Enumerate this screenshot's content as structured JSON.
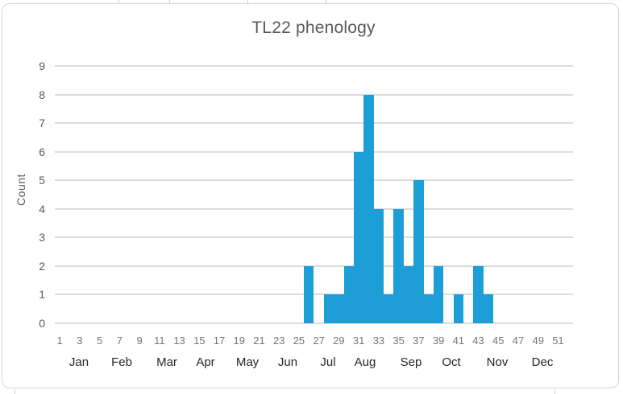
{
  "chart_data": {
    "type": "bar",
    "title": "TL22 phenology",
    "ylabel": "Count",
    "xlabel": "",
    "x_unit": "week-of-year",
    "ylim": [
      0,
      9
    ],
    "y_ticks": [
      "0",
      "1",
      "2",
      "3",
      "4",
      "5",
      "6",
      "7",
      "8",
      "9"
    ],
    "categories": [
      1,
      2,
      3,
      4,
      5,
      6,
      7,
      8,
      9,
      10,
      11,
      12,
      13,
      14,
      15,
      16,
      17,
      18,
      19,
      20,
      21,
      22,
      23,
      24,
      25,
      26,
      27,
      28,
      29,
      30,
      31,
      32,
      33,
      34,
      35,
      36,
      37,
      38,
      39,
      40,
      41,
      42,
      43,
      44,
      45,
      46,
      47,
      48,
      49,
      50,
      51,
      52
    ],
    "values": [
      0,
      0,
      0,
      0,
      0,
      0,
      0,
      0,
      0,
      0,
      0,
      0,
      0,
      0,
      0,
      0,
      0,
      0,
      0,
      0,
      0,
      0,
      0,
      0,
      0,
      2,
      0,
      1,
      1,
      2,
      6,
      8,
      4,
      1,
      4,
      2,
      5,
      1,
      2,
      0,
      1,
      0,
      2,
      1,
      0,
      0,
      0,
      0,
      0,
      0,
      0,
      0
    ],
    "x_tick_labels": [
      "1",
      "3",
      "5",
      "7",
      "9",
      "11",
      "13",
      "15",
      "17",
      "19",
      "21",
      "23",
      "25",
      "27",
      "29",
      "31",
      "33",
      "35",
      "37",
      "39",
      "41",
      "43",
      "45",
      "47",
      "49",
      "51"
    ],
    "month_labels": [
      "Jan",
      "Feb",
      "Mar",
      "Apr",
      "May",
      "Jun",
      "Jul",
      "Aug",
      "Sep",
      "Oct",
      "Nov",
      "Dec"
    ],
    "legend": "none",
    "grid": "horizontal",
    "gap_width_percent": 0,
    "bar_color": "#1E9ED6",
    "gridline_color": "#DCDCDC",
    "title_color": "#595959",
    "axis_label_color": "#595959",
    "week_label_color": "#757575",
    "month_label_color": "#262626"
  }
}
